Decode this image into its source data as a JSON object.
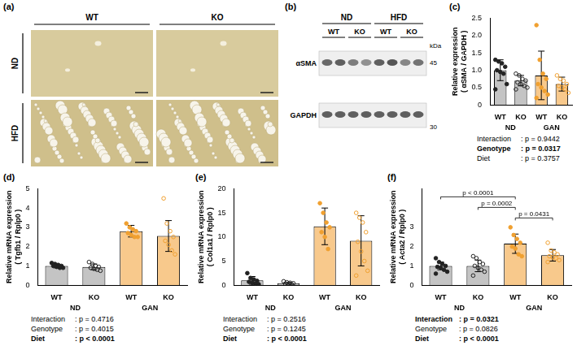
{
  "panel_a": {
    "letter": "(a)",
    "columns": [
      "WT",
      "KO"
    ],
    "rows": [
      "ND",
      "HFD"
    ]
  },
  "panel_b": {
    "letter": "(b)",
    "groups": [
      "ND",
      "HFD"
    ],
    "genotypes": [
      "WT",
      "KO",
      "WT",
      "KO"
    ],
    "rows": [
      "αSMA",
      "GAPDH"
    ],
    "unit": "kDa",
    "markers": [
      45,
      30
    ]
  },
  "chart_data": [
    {
      "letter": "(c)",
      "type": "bar",
      "categories": [
        "WT",
        "KO",
        "WT",
        "KO"
      ],
      "groups": [
        "ND",
        "GAN"
      ],
      "ylabel": [
        "Relative expression",
        "( αSMA / GAPDH )"
      ],
      "values": [
        1.0,
        0.7,
        0.85,
        0.6
      ],
      "errors": [
        0.3,
        0.15,
        0.7,
        0.2
      ],
      "colors": [
        "#c4c4c4",
        "#c4c4c4",
        "#f8c98c",
        "#f8c98c"
      ],
      "point_colors": [
        "#222222",
        "#222222",
        "#f0a030",
        "#f0a030"
      ],
      "marker": [
        "filled",
        "open",
        "filled",
        "open"
      ],
      "points": [
        [
          1.3,
          1.25,
          1.2,
          1.1,
          1.0,
          0.95,
          0.9,
          0.6,
          0.45
        ],
        [
          0.9,
          0.85,
          0.75,
          0.7,
          0.65,
          0.6,
          0.55,
          0.5,
          0.45
        ],
        [
          2.3,
          1.3,
          0.9,
          0.75,
          0.6,
          0.5,
          0.4,
          0.3,
          0.2
        ],
        [
          0.85,
          0.75,
          0.7,
          0.6,
          0.55,
          0.5,
          0.45,
          0.35
        ]
      ],
      "ylim": [
        0,
        2.5
      ],
      "yticks": [
        0,
        0.5,
        {
          "value": 1,
          "label": "1.0"
        },
        1.5,
        {
          "value": 2,
          "label": "2.0"
        },
        2.5
      ],
      "grid": false,
      "stats": [
        [
          "Interaction",
          ": p = 0.9442"
        ],
        [
          "Genotype",
          ": p = 0.0317"
        ],
        [
          "Diet",
          ": p = 0.3757"
        ]
      ]
    },
    {
      "letter": "(d)",
      "type": "bar",
      "categories": [
        "WT",
        "KO",
        "WT",
        "KO"
      ],
      "groups": [
        "ND",
        "GAN"
      ],
      "ylabel": [
        "Relative mRNA expression",
        "( Tgfb1 / Rplp0 )"
      ],
      "values": [
        1.0,
        0.95,
        2.8,
        2.55
      ],
      "errors": [
        0.1,
        0.15,
        0.3,
        0.8
      ],
      "colors": [
        "#c4c4c4",
        "#c4c4c4",
        "#f8c98c",
        "#f8c98c"
      ],
      "point_colors": [
        "#222222",
        "#222222",
        "#f0a030",
        "#f0a030"
      ],
      "marker": [
        "filled",
        "open",
        "filled",
        "open"
      ],
      "points": [
        [
          1.15,
          1.1,
          1.05,
          1.0,
          1.0,
          0.95,
          0.9,
          0.9
        ],
        [
          1.2,
          1.1,
          1.0,
          0.95,
          0.9,
          0.85,
          0.8,
          0.75
        ],
        [
          3.2,
          3.0,
          2.9,
          2.8,
          2.7,
          2.6,
          2.5,
          2.5
        ],
        [
          4.5,
          3.2,
          2.8,
          2.5,
          2.3,
          2.1,
          1.8,
          1.6
        ]
      ],
      "ylim": [
        0,
        5
      ],
      "yticks": [
        0,
        1,
        2,
        3,
        4,
        5
      ],
      "grid": false,
      "stats": [
        [
          "Interaction",
          ": p = 0.4716"
        ],
        [
          "Genotype",
          ": p = 0.4015"
        ],
        [
          "Diet",
          ": p < 0.0001"
        ]
      ]
    },
    {
      "letter": "(e)",
      "type": "bar",
      "categories": [
        "WT",
        "KO",
        "WT",
        "KO"
      ],
      "groups": [
        "ND",
        "GAN"
      ],
      "ylabel": [
        "Relative mRNA expression",
        "( Col1a1 / Rplp0 )"
      ],
      "values": [
        1.0,
        0.4,
        12.2,
        9.2
      ],
      "errors": [
        0.8,
        0.2,
        3.8,
        5.2
      ],
      "colors": [
        "#c4c4c4",
        "#c4c4c4",
        "#f8c98c",
        "#f8c98c"
      ],
      "point_colors": [
        "#222222",
        "#222222",
        "#f0a030",
        "#f0a030"
      ],
      "marker": [
        "filled",
        "open",
        "filled",
        "open"
      ],
      "points": [
        [
          2.5,
          1.5,
          1.2,
          0.9,
          0.7,
          0.5,
          0.3,
          0.2
        ],
        [
          0.8,
          0.6,
          0.5,
          0.4,
          0.3,
          0.2,
          0.2
        ],
        [
          17,
          15,
          13,
          12,
          11,
          10,
          7.5
        ],
        [
          15,
          14,
          13,
          11,
          9,
          7,
          5,
          3,
          2
        ]
      ],
      "ylim": [
        0,
        20
      ],
      "yticks": [
        0,
        5,
        10,
        15,
        20
      ],
      "grid": false,
      "stats": [
        [
          "Interaction",
          ": p = 0.2516"
        ],
        [
          "Genotype",
          ": p = 0.1245"
        ],
        [
          "Diet",
          ": p < 0.0001"
        ]
      ]
    },
    {
      "letter": "(f)",
      "type": "bar",
      "categories": [
        "WT",
        "KO",
        "WT",
        "KO"
      ],
      "groups": [
        "ND",
        "GAN"
      ],
      "ylabel": [
        "Relative mRNA expression",
        "( Acta2 / Rplp0 )"
      ],
      "values": [
        1.0,
        1.0,
        2.15,
        1.55
      ],
      "errors": [
        0.2,
        0.3,
        0.5,
        0.3
      ],
      "colors": [
        "#c4c4c4",
        "#c4c4c4",
        "#f8c98c",
        "#f8c98c"
      ],
      "point_colors": [
        "#222222",
        "#222222",
        "#f0a030",
        "#f0a030"
      ],
      "marker": [
        "filled",
        "open",
        "filled",
        "open"
      ],
      "points": [
        [
          1.4,
          1.2,
          1.1,
          1.0,
          0.95,
          0.9,
          0.8,
          0.7,
          0.6
        ],
        [
          1.5,
          1.4,
          1.2,
          1.1,
          1.0,
          0.9,
          0.8,
          0.7,
          0.5
        ],
        [
          3.0,
          2.6,
          2.4,
          2.2,
          2.0,
          1.9,
          1.6,
          1.5
        ],
        [
          2.2,
          1.8,
          1.7,
          1.6,
          1.5,
          1.45,
          1.4,
          1.3,
          1.2
        ]
      ],
      "ylim": [
        0,
        5
      ],
      "yticks": [
        0,
        1,
        2,
        3
      ],
      "grid": false,
      "brackets": [
        {
          "from": 0,
          "to": 2,
          "label": "p < 0.0001"
        },
        {
          "from": 1,
          "to": 2,
          "label": "p = 0.0002"
        },
        {
          "from": 2,
          "to": 3,
          "label": "p = 0.0431"
        }
      ],
      "stats": [
        [
          "Interaction",
          ": p = 0.0321"
        ],
        [
          "Genotype",
          ": p = 0.0826"
        ],
        [
          "Diet",
          ": p < 0.0001"
        ]
      ]
    }
  ]
}
